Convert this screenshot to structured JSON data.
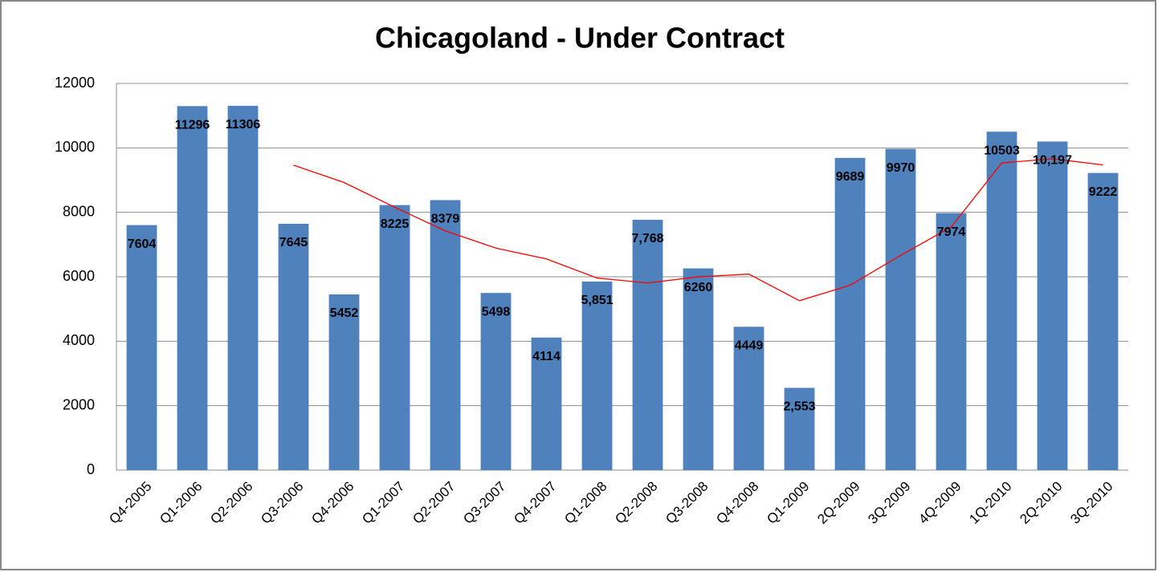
{
  "chart_data": {
    "type": "bar",
    "title": "Chicagoland - Under Contract",
    "categories": [
      "Q4-2005",
      "Q1-2006",
      "Q2-2006",
      "Q3-2006",
      "Q4-2006",
      "Q1-2007",
      "Q2-2007",
      "Q3-2007",
      "Q4-2007",
      "Q1-2008",
      "Q2-2008",
      "Q3-2008",
      "Q4-2008",
      "Q1-2009",
      "2Q-2009",
      "3Q-2009",
      "4Q-2009",
      "1Q-2010",
      "2Q-2010",
      "3Q-2010"
    ],
    "series": [
      {
        "type": "bar",
        "color": "#4f81bd",
        "values": [
          7604,
          11296,
          11306,
          7645,
          5452,
          8225,
          8379,
          5498,
          4114,
          5851,
          7768,
          6260,
          4449,
          2553,
          9689,
          9970,
          7974,
          10503,
          10197,
          9222
        ],
        "value_labels": [
          "7604",
          "11296",
          "11306",
          "7645",
          "5452",
          "8225",
          "8379",
          "5498",
          "4114",
          "5,851",
          "7,768",
          "6260",
          "4449",
          "2,553",
          "9689",
          "9970",
          "7974",
          "10503",
          "10,197",
          "9222"
        ]
      },
      {
        "type": "line",
        "color": "#ff0000",
        "values": [
          null,
          null,
          null,
          9463,
          8925,
          8157,
          7425,
          6889,
          6554,
          5961,
          5808,
          5998,
          6082,
          5258,
          5738,
          6665,
          7547,
          9534,
          9661,
          9474
        ]
      }
    ],
    "ylim": [
      0,
      12000
    ],
    "yticks": [
      0,
      2000,
      4000,
      6000,
      8000,
      10000,
      12000
    ],
    "grid": true
  }
}
